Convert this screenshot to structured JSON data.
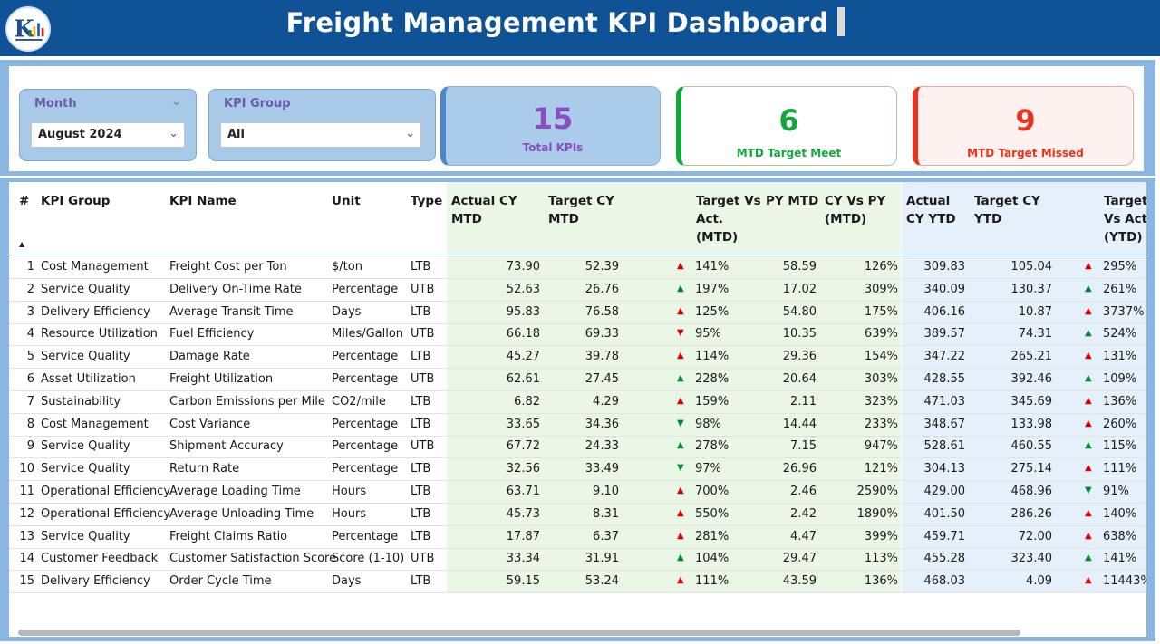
{
  "header": {
    "title": "Freight Management KPI Dashboard"
  },
  "filters": {
    "month": {
      "label": "Month",
      "value": "August 2024"
    },
    "kpi_group": {
      "label": "KPI Group",
      "value": "All"
    }
  },
  "cards": {
    "total": {
      "value": "15",
      "label": "Total KPIs",
      "color": "#8a4fbf"
    },
    "meet": {
      "value": "6",
      "label": "MTD Target Meet",
      "color": "#14a83b"
    },
    "missed": {
      "value": "9",
      "label": "MTD Target Missed",
      "color": "#e8341c"
    }
  },
  "table": {
    "columns": {
      "num": "#",
      "group": "KPI Group",
      "name": "KPI Name",
      "unit": "Unit",
      "type": "Type",
      "actual_mtd_1": "Actual CY",
      "actual_mtd_2": "MTD",
      "target_mtd_1": "Target CY",
      "target_mtd_2": "MTD",
      "tva_mtd_1": "Target Vs",
      "tva_mtd_2": "Act.",
      "tva_mtd_3": "(MTD)",
      "py_mtd": "PY MTD",
      "cyvspy_1": "CY Vs PY",
      "cyvspy_2": "(MTD)",
      "actual_ytd_1": "Actual",
      "actual_ytd_2": "CY YTD",
      "target_ytd_1": "Target CY",
      "target_ytd_2": "YTD",
      "tva_ytd_1": "Target",
      "tva_ytd_2": "Vs Act",
      "tva_ytd_3": "(YTD)"
    },
    "rows": [
      {
        "num": "1",
        "group": "Cost Management",
        "name": "Freight Cost per Ton",
        "unit": "$/ton",
        "type": "LTB",
        "actual_mtd": "73.90",
        "target_mtd": "52.39",
        "mtd_icon": "up-red",
        "tva_mtd": "141%",
        "py_mtd": "58.59",
        "cyvspy": "126%",
        "actual_ytd": "309.83",
        "target_ytd": "105.04",
        "ytd_icon": "up-red",
        "tva_ytd": "295%"
      },
      {
        "num": "2",
        "group": "Service Quality",
        "name": "Delivery On-Time Rate",
        "unit": "Percentage",
        "type": "UTB",
        "actual_mtd": "52.63",
        "target_mtd": "26.76",
        "mtd_icon": "up-green",
        "tva_mtd": "197%",
        "py_mtd": "17.02",
        "cyvspy": "309%",
        "actual_ytd": "340.09",
        "target_ytd": "130.37",
        "ytd_icon": "up-green",
        "tva_ytd": "261%"
      },
      {
        "num": "3",
        "group": "Delivery Efficiency",
        "name": "Average Transit Time",
        "unit": "Days",
        "type": "LTB",
        "actual_mtd": "95.83",
        "target_mtd": "76.58",
        "mtd_icon": "up-red",
        "tva_mtd": "125%",
        "py_mtd": "54.80",
        "cyvspy": "175%",
        "actual_ytd": "406.16",
        "target_ytd": "10.87",
        "ytd_icon": "up-red",
        "tva_ytd": "3737%"
      },
      {
        "num": "4",
        "group": "Resource Utilization",
        "name": "Fuel Efficiency",
        "unit": "Miles/Gallon",
        "type": "UTB",
        "actual_mtd": "66.18",
        "target_mtd": "69.33",
        "mtd_icon": "down-red",
        "tva_mtd": "95%",
        "py_mtd": "10.35",
        "cyvspy": "639%",
        "actual_ytd": "389.57",
        "target_ytd": "74.31",
        "ytd_icon": "up-green",
        "tva_ytd": "524%"
      },
      {
        "num": "5",
        "group": "Service Quality",
        "name": "Damage Rate",
        "unit": "Percentage",
        "type": "LTB",
        "actual_mtd": "45.27",
        "target_mtd": "39.78",
        "mtd_icon": "up-red",
        "tva_mtd": "114%",
        "py_mtd": "29.36",
        "cyvspy": "154%",
        "actual_ytd": "347.22",
        "target_ytd": "265.21",
        "ytd_icon": "up-red",
        "tva_ytd": "131%"
      },
      {
        "num": "6",
        "group": "Asset Utilization",
        "name": "Freight Utilization",
        "unit": "Percentage",
        "type": "UTB",
        "actual_mtd": "62.61",
        "target_mtd": "27.45",
        "mtd_icon": "up-green",
        "tva_mtd": "228%",
        "py_mtd": "20.64",
        "cyvspy": "303%",
        "actual_ytd": "428.55",
        "target_ytd": "392.46",
        "ytd_icon": "up-green",
        "tva_ytd": "109%"
      },
      {
        "num": "7",
        "group": "Sustainability",
        "name": "Carbon Emissions per Mile",
        "unit": "CO2/mile",
        "type": "LTB",
        "actual_mtd": "6.82",
        "target_mtd": "4.29",
        "mtd_icon": "up-red",
        "tva_mtd": "159%",
        "py_mtd": "2.11",
        "cyvspy": "323%",
        "actual_ytd": "471.03",
        "target_ytd": "345.69",
        "ytd_icon": "up-red",
        "tva_ytd": "136%"
      },
      {
        "num": "8",
        "group": "Cost Management",
        "name": "Cost Variance",
        "unit": "Percentage",
        "type": "LTB",
        "actual_mtd": "33.65",
        "target_mtd": "34.36",
        "mtd_icon": "down-green",
        "tva_mtd": "98%",
        "py_mtd": "14.44",
        "cyvspy": "233%",
        "actual_ytd": "348.67",
        "target_ytd": "133.98",
        "ytd_icon": "up-red",
        "tva_ytd": "260%"
      },
      {
        "num": "9",
        "group": "Service Quality",
        "name": "Shipment Accuracy",
        "unit": "Percentage",
        "type": "UTB",
        "actual_mtd": "67.72",
        "target_mtd": "24.33",
        "mtd_icon": "up-green",
        "tva_mtd": "278%",
        "py_mtd": "7.15",
        "cyvspy": "947%",
        "actual_ytd": "528.61",
        "target_ytd": "460.55",
        "ytd_icon": "up-green",
        "tva_ytd": "115%"
      },
      {
        "num": "10",
        "group": "Service Quality",
        "name": "Return Rate",
        "unit": "Percentage",
        "type": "LTB",
        "actual_mtd": "32.56",
        "target_mtd": "33.49",
        "mtd_icon": "down-green",
        "tva_mtd": "97%",
        "py_mtd": "26.96",
        "cyvspy": "121%",
        "actual_ytd": "304.13",
        "target_ytd": "275.14",
        "ytd_icon": "up-red",
        "tva_ytd": "111%"
      },
      {
        "num": "11",
        "group": "Operational Efficiency",
        "name": "Average Loading Time",
        "unit": "Hours",
        "type": "LTB",
        "actual_mtd": "63.71",
        "target_mtd": "9.10",
        "mtd_icon": "up-red",
        "tva_mtd": "700%",
        "py_mtd": "2.46",
        "cyvspy": "2590%",
        "actual_ytd": "429.00",
        "target_ytd": "468.96",
        "ytd_icon": "down-green",
        "tva_ytd": "91%"
      },
      {
        "num": "12",
        "group": "Operational Efficiency",
        "name": "Average Unloading Time",
        "unit": "Hours",
        "type": "LTB",
        "actual_mtd": "45.73",
        "target_mtd": "8.31",
        "mtd_icon": "up-red",
        "tva_mtd": "550%",
        "py_mtd": "2.42",
        "cyvspy": "1890%",
        "actual_ytd": "401.50",
        "target_ytd": "286.26",
        "ytd_icon": "up-red",
        "tva_ytd": "140%"
      },
      {
        "num": "13",
        "group": "Service Quality",
        "name": "Freight Claims Ratio",
        "unit": "Percentage",
        "type": "LTB",
        "actual_mtd": "17.87",
        "target_mtd": "6.37",
        "mtd_icon": "up-red",
        "tva_mtd": "281%",
        "py_mtd": "4.47",
        "cyvspy": "399%",
        "actual_ytd": "459.71",
        "target_ytd": "72.00",
        "ytd_icon": "up-red",
        "tva_ytd": "638%"
      },
      {
        "num": "14",
        "group": "Customer Feedback",
        "name": "Customer Satisfaction Score",
        "unit": "Score (1-10)",
        "type": "UTB",
        "actual_mtd": "33.34",
        "target_mtd": "31.91",
        "mtd_icon": "up-green",
        "tva_mtd": "104%",
        "py_mtd": "29.47",
        "cyvspy": "113%",
        "actual_ytd": "455.28",
        "target_ytd": "323.40",
        "ytd_icon": "up-green",
        "tva_ytd": "141%"
      },
      {
        "num": "15",
        "group": "Delivery Efficiency",
        "name": "Order Cycle Time",
        "unit": "Days",
        "type": "LTB",
        "actual_mtd": "59.15",
        "target_mtd": "53.24",
        "mtd_icon": "up-red",
        "tva_mtd": "111%",
        "py_mtd": "43.59",
        "cyvspy": "136%",
        "actual_ytd": "468.03",
        "target_ytd": "4.09",
        "ytd_icon": "up-red",
        "tva_ytd": "11443%"
      }
    ]
  },
  "icons": {
    "up-red": {
      "glyph": "▲",
      "color": "#e00000",
      "name": "up-triangle-red-icon"
    },
    "up-green": {
      "glyph": "▲",
      "color": "#008a2e",
      "name": "up-triangle-green-icon"
    },
    "down-red": {
      "glyph": "▼",
      "color": "#e00000",
      "name": "down-triangle-red-icon"
    },
    "down-green": {
      "glyph": "▼",
      "color": "#008a2e",
      "name": "down-triangle-green-icon"
    }
  }
}
